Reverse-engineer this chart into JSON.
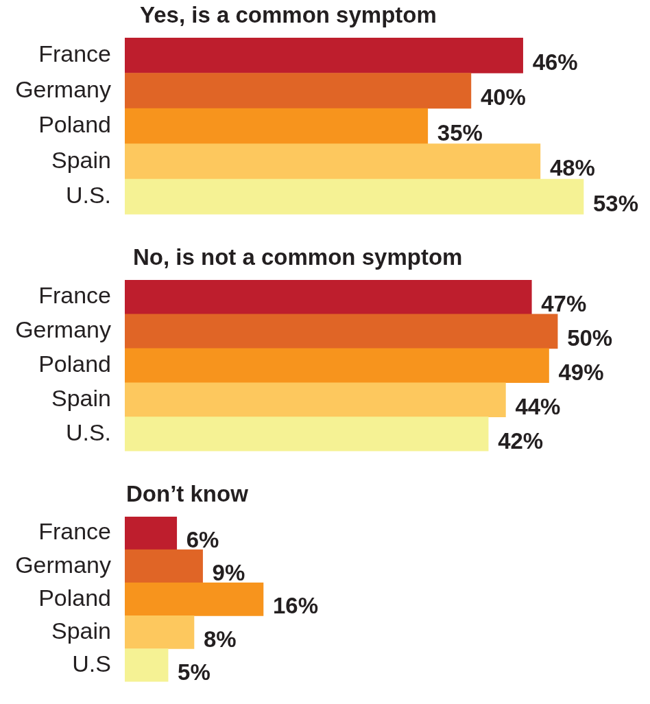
{
  "chart_data": [
    {
      "type": "bar",
      "orientation": "horizontal",
      "title": "Yes, is a common symptom",
      "categories": [
        "France",
        "Germany",
        "Poland",
        "Spain",
        "U.S."
      ],
      "values": [
        46,
        40,
        35,
        48,
        53
      ],
      "colors": [
        "#be1e2d",
        "#e06526",
        "#f7941d",
        "#fdc85e",
        "#f5f294"
      ],
      "value_labels": [
        "46%",
        "40%",
        "35%",
        "48%",
        "53%"
      ]
    },
    {
      "type": "bar",
      "orientation": "horizontal",
      "title": "No, is not a common symptom",
      "categories": [
        "France",
        "Germany",
        "Poland",
        "Spain",
        "U.S."
      ],
      "values": [
        47,
        50,
        49,
        44,
        42
      ],
      "colors": [
        "#be1e2d",
        "#e06526",
        "#f7941d",
        "#fdc85e",
        "#f5f294"
      ],
      "value_labels": [
        "47%",
        "50%",
        "49%",
        "44%",
        "42%"
      ]
    },
    {
      "type": "bar",
      "orientation": "horizontal",
      "title": "Don’t know",
      "categories": [
        "France",
        "Germany",
        "Poland",
        "Spain",
        "U.S"
      ],
      "values": [
        6,
        9,
        16,
        8,
        5
      ],
      "colors": [
        "#be1e2d",
        "#e06526",
        "#f7941d",
        "#fdc85e",
        "#f5f294"
      ],
      "value_labels": [
        "6%",
        "9%",
        "16%",
        "8%",
        "5%"
      ]
    }
  ]
}
